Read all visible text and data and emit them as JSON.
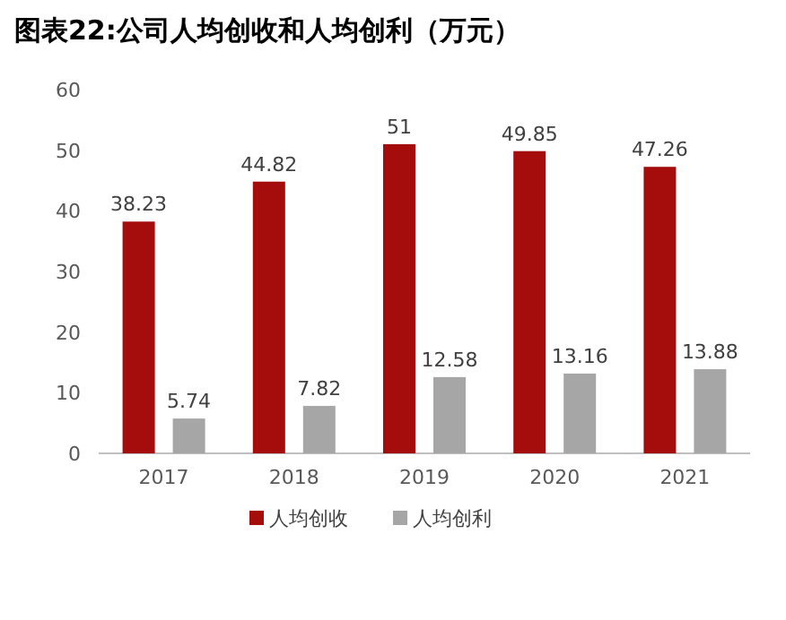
{
  "chart_data": {
    "type": "bar",
    "title": "图表22:公司人均创收和人均创利（万元）",
    "categories": [
      "2017",
      "2018",
      "2019",
      "2020",
      "2021"
    ],
    "series": [
      {
        "name": "人均创收",
        "color": "#a50d0d",
        "values": [
          38.23,
          44.82,
          51,
          49.85,
          47.26
        ],
        "value_labels": [
          "38.23",
          "44.82",
          "51",
          "49.85",
          "47.26"
        ]
      },
      {
        "name": "人均创利",
        "color": "#a6a6a6",
        "values": [
          5.74,
          7.82,
          12.58,
          13.16,
          13.88
        ],
        "value_labels": [
          "5.74",
          "7.82",
          "12.58",
          "13.16",
          "13.88"
        ]
      }
    ],
    "ylim": [
      0,
      60
    ],
    "yticks": [
      0,
      10,
      20,
      30,
      40,
      50,
      60
    ],
    "grid": false,
    "legend": "bottom"
  }
}
